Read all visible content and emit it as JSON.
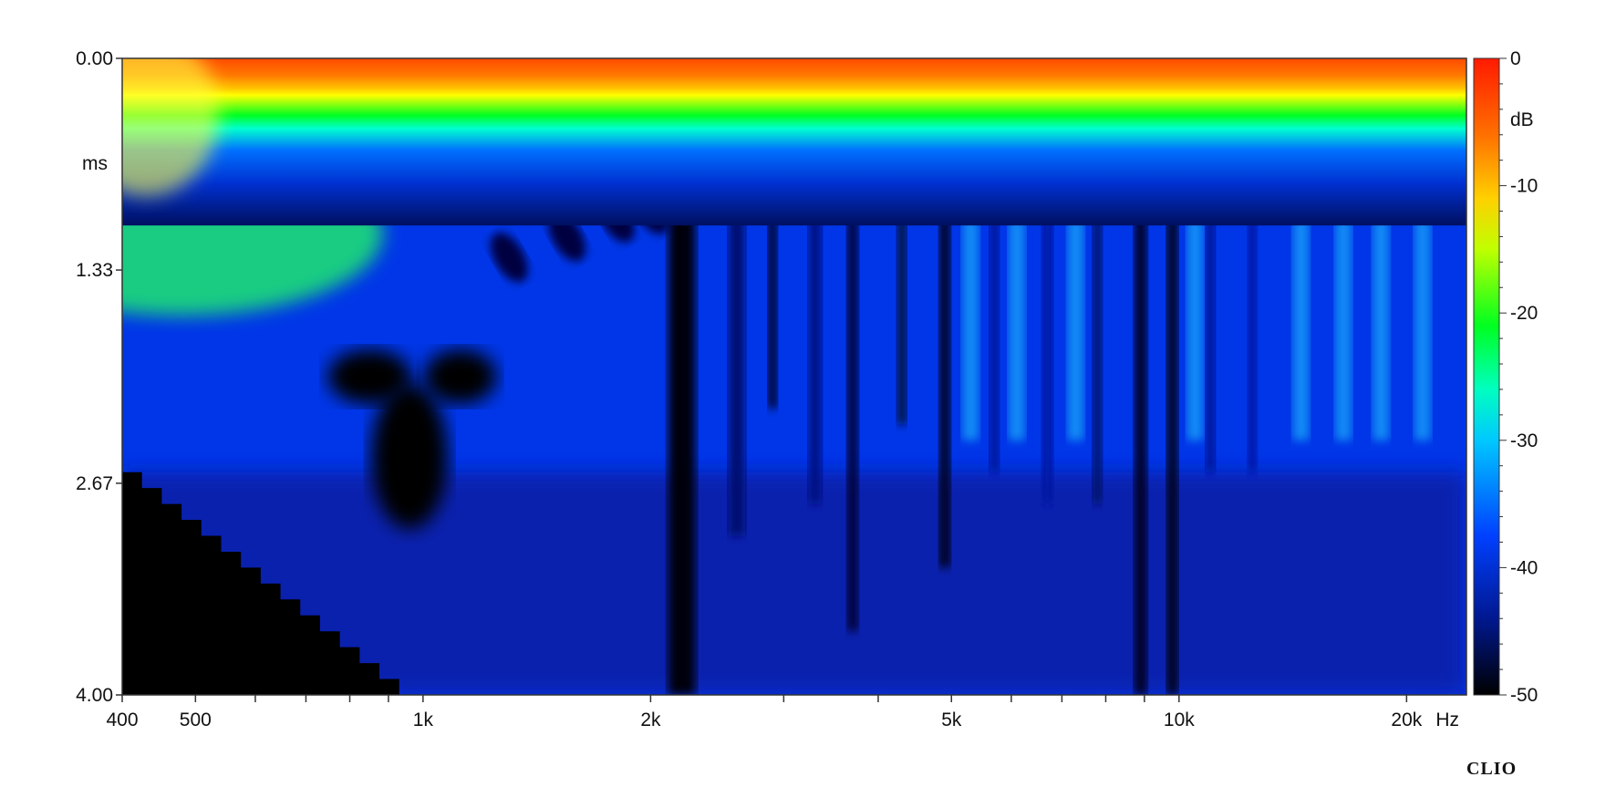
{
  "chart_data": {
    "type": "heatmap",
    "title": "",
    "xlabel": "",
    "ylabel": "ms",
    "x_scale": "log",
    "x_range": [
      400,
      24000
    ],
    "y_range": [
      0.0,
      4.0
    ],
    "y_ticks": [
      "0.00",
      "1.33",
      "2.67",
      "4.00"
    ],
    "y_tick_values": [
      0.0,
      1.33,
      2.67,
      4.0
    ],
    "x_ticks": [
      "400",
      "500",
      "1k",
      "2k",
      "5k",
      "10k",
      "20k"
    ],
    "x_tick_values": [
      400,
      500,
      1000,
      2000,
      5000,
      10000,
      20000
    ],
    "x_unit": "Hz",
    "colorbar": {
      "unit": "dB",
      "range": [
        -50,
        0
      ],
      "ticks": [
        "0",
        "-10",
        "-20",
        "-30",
        "-40",
        "-50"
      ],
      "tick_values": [
        0,
        -10,
        -20,
        -30,
        -40,
        -50
      ],
      "colors": [
        "#000000",
        "#001070",
        "#0030ff",
        "#00e8ff",
        "#00ff20",
        "#ffff00",
        "#ff9000",
        "#ff1a00"
      ]
    },
    "grid": false,
    "regions": [
      {
        "desc": "direct sound band",
        "time_ms": [
          0.0,
          0.9
        ],
        "level_db": [
          -12,
          0
        ]
      },
      {
        "desc": "low-frequency dip",
        "freq_hz": [
          800,
          1300
        ],
        "time_ms": [
          2.0,
          3.1
        ],
        "level_db": -50
      },
      {
        "desc": "high-frequency late decay",
        "freq_hz": [
          2000,
          20000
        ],
        "time_ms": [
          0.9,
          4.0
        ],
        "level_db": [
          -50,
          -28
        ]
      }
    ]
  },
  "branding": {
    "logo": "CLIO"
  }
}
